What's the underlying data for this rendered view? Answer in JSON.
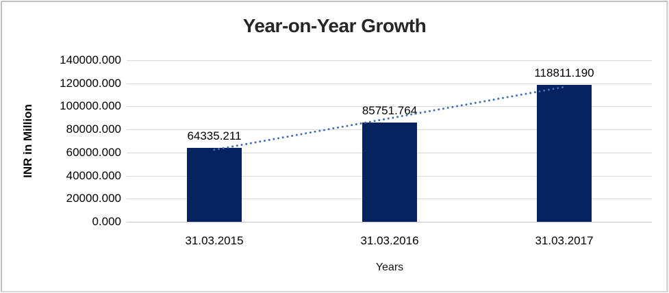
{
  "chart_data": {
    "type": "bar",
    "title": "Year-on-Year Growth",
    "xlabel": "Years",
    "ylabel": "INR in Million",
    "categories": [
      "31.03.2015",
      "31.03.2016",
      "31.03.2017"
    ],
    "values": [
      64335.211,
      85751.764,
      118811.19
    ],
    "value_labels": [
      "64335.211",
      "85751.764",
      "118811.190"
    ],
    "ylim": [
      0,
      140000
    ],
    "ytick_step": 20000,
    "ytick_labels": [
      "0.000",
      "20000.000",
      "40000.000",
      "60000.000",
      "80000.000",
      "100000.000",
      "120000.000",
      "140000.000"
    ],
    "grid": true,
    "legend": "none",
    "trendline": {
      "type": "linear",
      "style": "dotted",
      "color": "#3f6db8"
    },
    "colors": {
      "bar": "#07235f",
      "gridline": "#d9d9d9",
      "axis_line": "#c6c6c6",
      "title_text": "#262626",
      "label_text": "#000000",
      "frame_border": "#bfbfbf",
      "background": "#ffffff"
    }
  }
}
